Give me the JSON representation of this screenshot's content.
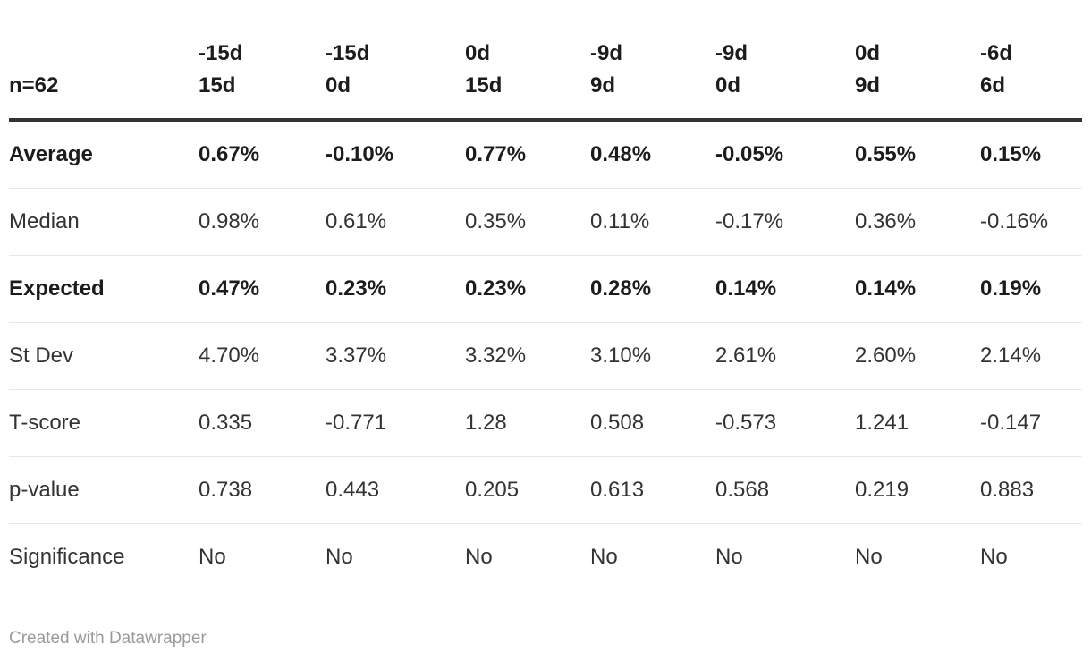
{
  "chart_data": {
    "type": "table",
    "corner_label": "n=62",
    "columns": [
      [
        "-15d",
        "15d"
      ],
      [
        "-15d",
        "0d"
      ],
      [
        "0d",
        "15d"
      ],
      [
        "-9d",
        "9d"
      ],
      [
        "-9d",
        "0d"
      ],
      [
        "0d",
        "9d"
      ],
      [
        "-6d",
        "6d"
      ]
    ],
    "rows": [
      {
        "label": "Average",
        "bold": true,
        "values": [
          "0.67%",
          "-0.10%",
          "0.77%",
          "0.48%",
          "-0.05%",
          "0.55%",
          "0.15%"
        ]
      },
      {
        "label": "Median",
        "bold": false,
        "values": [
          "0.98%",
          "0.61%",
          "0.35%",
          "0.11%",
          "-0.17%",
          "0.36%",
          "-0.16%"
        ]
      },
      {
        "label": "Expected",
        "bold": true,
        "values": [
          "0.47%",
          "0.23%",
          "0.23%",
          "0.28%",
          "0.14%",
          "0.14%",
          "0.19%"
        ]
      },
      {
        "label": "St Dev",
        "bold": false,
        "values": [
          "4.70%",
          "3.37%",
          "3.32%",
          "3.10%",
          "2.61%",
          "2.60%",
          "2.14%"
        ]
      },
      {
        "label": "T-score",
        "bold": false,
        "values": [
          "0.335",
          "-0.771",
          "1.28",
          "0.508",
          "-0.573",
          "1.241",
          "-0.147"
        ]
      },
      {
        "label": "p-value",
        "bold": false,
        "values": [
          "0.738",
          "0.443",
          "0.205",
          "0.613",
          "0.568",
          "0.219",
          "0.883"
        ]
      },
      {
        "label": "Significance",
        "bold": false,
        "values": [
          "No",
          "No",
          "No",
          "No",
          "No",
          "No",
          "No"
        ]
      }
    ],
    "layout_hints": {
      "label_column_header_position": "bottom-left",
      "grid": "horizontal-dividers-only",
      "header_rule": "thick-dark"
    }
  },
  "footer": {
    "attribution": "Created with Datawrapper"
  },
  "colors": {
    "background": "#ffffff",
    "text": "#333333",
    "bold_text": "#1c1c1c",
    "header_rule": "#333333",
    "row_divider": "#e8e8e8",
    "attribution": "#9b9b9b"
  }
}
